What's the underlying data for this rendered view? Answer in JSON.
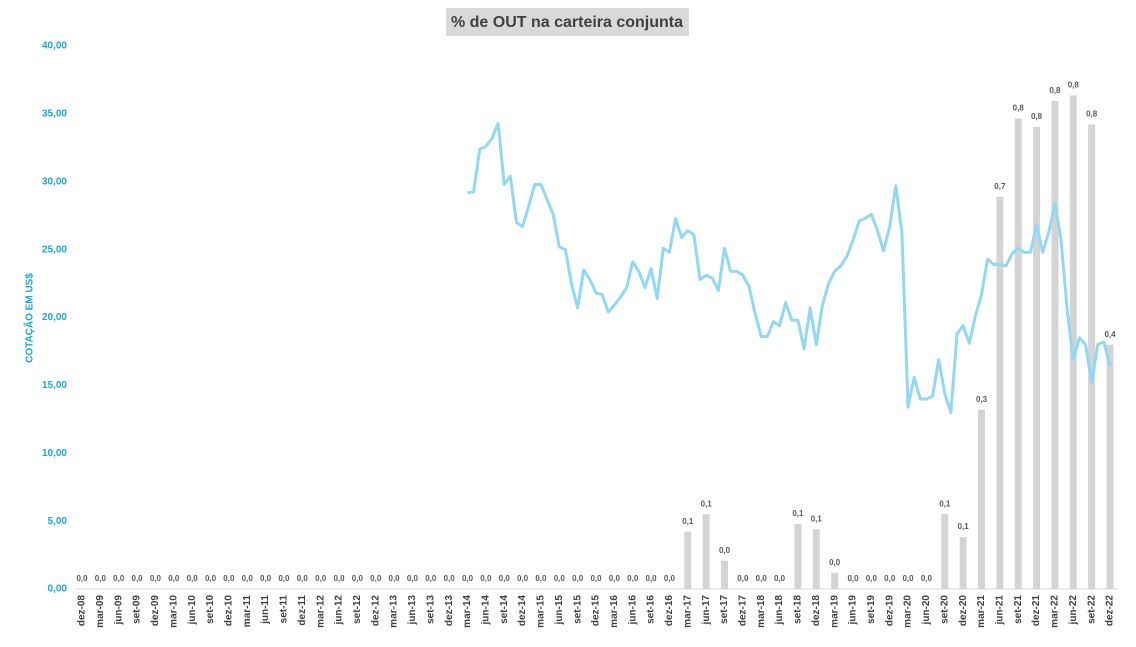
{
  "chart_data": {
    "type": "combo",
    "title": "% de OUT na carteira conjunta",
    "y_label": "COTAÇÃO EM US$",
    "categories": [
      "dez-08",
      null,
      null,
      "mar-09",
      null,
      null,
      "jun-09",
      null,
      null,
      "set-09",
      null,
      null,
      "dez-09",
      null,
      null,
      "mar-10",
      null,
      null,
      "jun-10",
      null,
      null,
      "set-10",
      null,
      null,
      "dez-10",
      null,
      null,
      "mar-11",
      null,
      null,
      "jun-11",
      null,
      null,
      "set-11",
      null,
      null,
      "dez-11",
      null,
      null,
      "mar-12",
      null,
      null,
      "jun-12",
      null,
      null,
      "set-12",
      null,
      null,
      "dez-12",
      null,
      null,
      "mar-13",
      null,
      null,
      "jun-13",
      null,
      null,
      "set-13",
      null,
      null,
      "dez-13",
      null,
      null,
      "mar-14",
      null,
      null,
      "jun-14",
      null,
      null,
      "set-14",
      null,
      null,
      "dez-14",
      null,
      null,
      "mar-15",
      null,
      null,
      "jun-15",
      null,
      null,
      "set-15",
      null,
      null,
      "dez-15",
      null,
      null,
      "mar-16",
      null,
      null,
      "jun-16",
      null,
      null,
      "set-16",
      null,
      null,
      "dez-16",
      null,
      null,
      "mar-17",
      null,
      null,
      "jun-17",
      null,
      null,
      "set-17",
      null,
      null,
      "dez-17",
      null,
      null,
      "mar-18",
      null,
      null,
      "jun-18",
      null,
      null,
      "set-18",
      null,
      null,
      "dez-18",
      null,
      null,
      "mar-19",
      null,
      null,
      "jun-19",
      null,
      null,
      "set-19",
      null,
      null,
      "dez-19",
      null,
      null,
      "mar-20",
      null,
      null,
      "jun-20",
      null,
      null,
      "set-20",
      null,
      null,
      "dez-20",
      null,
      null,
      "mar-21",
      null,
      null,
      "jun-21",
      null,
      null,
      "set-21",
      null,
      null,
      "dez-21",
      null,
      null,
      "mar-22",
      null,
      null,
      "jun-22",
      null,
      null,
      "set-22",
      null,
      null,
      "dez-22"
    ],
    "ylim": [
      0,
      40
    ],
    "yticks": [
      {
        "value": 0,
        "label": "0,00"
      },
      {
        "value": 5,
        "label": "5,00"
      },
      {
        "value": 10,
        "label": "10,00"
      },
      {
        "value": 15,
        "label": "15,00"
      },
      {
        "value": 20,
        "label": "20,00"
      },
      {
        "value": 25,
        "label": "25,00"
      },
      {
        "value": 30,
        "label": "30,00"
      },
      {
        "value": 35,
        "label": "35,00"
      },
      {
        "value": 40,
        "label": "40,00"
      }
    ],
    "y2lim": [
      0,
      0.9
    ],
    "series": [
      {
        "type": "bar",
        "axis": "y2",
        "color": "#d4d4d4",
        "values": [
          0,
          null,
          null,
          0,
          null,
          null,
          0,
          null,
          null,
          0,
          null,
          null,
          0,
          null,
          null,
          0,
          null,
          null,
          0,
          null,
          null,
          0,
          null,
          null,
          0,
          null,
          null,
          0,
          null,
          null,
          0,
          null,
          null,
          0,
          null,
          null,
          0,
          null,
          null,
          0,
          null,
          null,
          0,
          null,
          null,
          0,
          null,
          null,
          0,
          null,
          null,
          0,
          null,
          null,
          0,
          null,
          null,
          0,
          null,
          null,
          0,
          null,
          null,
          0,
          null,
          null,
          0,
          null,
          null,
          0,
          null,
          null,
          0,
          null,
          null,
          0,
          null,
          null,
          0,
          null,
          null,
          0,
          null,
          null,
          0,
          null,
          null,
          0,
          null,
          null,
          0,
          null,
          null,
          0,
          null,
          null,
          0,
          null,
          null,
          0.095,
          null,
          null,
          0.124,
          null,
          null,
          0.047,
          null,
          null,
          0,
          null,
          null,
          0,
          null,
          null,
          0,
          null,
          null,
          0.108,
          null,
          null,
          0.099,
          null,
          null,
          0.027,
          null,
          null,
          0,
          null,
          null,
          0,
          null,
          null,
          0,
          null,
          null,
          0,
          null,
          null,
          0,
          null,
          null,
          0.124,
          null,
          null,
          0.086,
          null,
          null,
          0.297,
          null,
          null,
          0.65,
          null,
          null,
          0.78,
          null,
          null,
          0.766,
          null,
          null,
          0.809,
          null,
          null,
          0.818,
          null,
          null,
          0.77,
          null,
          null,
          0.405
        ],
        "value_labels": [
          "0,0",
          null,
          null,
          "0,0",
          null,
          null,
          "0,0",
          null,
          null,
          "0,0",
          null,
          null,
          "0,0",
          null,
          null,
          "0,0",
          null,
          null,
          "0,0",
          null,
          null,
          "0,0",
          null,
          null,
          "0,0",
          null,
          null,
          "0,0",
          null,
          null,
          "0,0",
          null,
          null,
          "0,0",
          null,
          null,
          "0,0",
          null,
          null,
          "0,0",
          null,
          null,
          "0,0",
          null,
          null,
          "0,0",
          null,
          null,
          "0,0",
          null,
          null,
          "0,0",
          null,
          null,
          "0,0",
          null,
          null,
          "0,0",
          null,
          null,
          "0,0",
          null,
          null,
          "0,0",
          null,
          null,
          "0,0",
          null,
          null,
          "0,0",
          null,
          null,
          "0,0",
          null,
          null,
          "0,0",
          null,
          null,
          "0,0",
          null,
          null,
          "0,0",
          null,
          null,
          "0,0",
          null,
          null,
          "0,0",
          null,
          null,
          "0,0",
          null,
          null,
          "0,0",
          null,
          null,
          "0,0",
          null,
          null,
          "0,1",
          null,
          null,
          "0,1",
          null,
          null,
          "0,0",
          null,
          null,
          "0,0",
          null,
          null,
          "0,0",
          null,
          null,
          "0,0",
          null,
          null,
          "0,1",
          null,
          null,
          "0,1",
          null,
          null,
          "0,0",
          null,
          null,
          "0,0",
          null,
          null,
          "0,0",
          null,
          null,
          "0,0",
          null,
          null,
          "0,0",
          null,
          null,
          "0,0",
          null,
          null,
          "0,1",
          null,
          null,
          "0,1",
          null,
          null,
          "0,3",
          null,
          null,
          "0,7",
          null,
          null,
          "0,8",
          null,
          null,
          "0,8",
          null,
          null,
          "0,8",
          null,
          null,
          "0,8",
          null,
          null,
          "0,8",
          null,
          null,
          "0,4"
        ]
      },
      {
        "type": "line",
        "color": "#93d8f2",
        "values": [
          null,
          null,
          null,
          null,
          null,
          null,
          null,
          null,
          null,
          null,
          null,
          null,
          null,
          null,
          null,
          null,
          null,
          null,
          null,
          null,
          null,
          null,
          null,
          null,
          null,
          null,
          null,
          null,
          null,
          null,
          null,
          null,
          null,
          null,
          null,
          null,
          null,
          null,
          null,
          null,
          null,
          null,
          null,
          null,
          null,
          null,
          null,
          null,
          null,
          null,
          null,
          null,
          null,
          null,
          null,
          null,
          null,
          null,
          null,
          null,
          null,
          null,
          null,
          29.2,
          29.25,
          32.4,
          32.6,
          33.2,
          34.3,
          29.8,
          30.4,
          27.0,
          26.7,
          28.2,
          29.8,
          29.8,
          28.7,
          27.6,
          25.2,
          25.0,
          22.5,
          20.7,
          23.5,
          22.8,
          21.8,
          21.7,
          20.4,
          20.9,
          21.5,
          22.2,
          24.1,
          23.4,
          22.2,
          23.6,
          21.4,
          25.1,
          24.8,
          27.3,
          25.9,
          26.4,
          26.1,
          22.8,
          23.1,
          22.9,
          22.0,
          25.1,
          23.4,
          23.4,
          23.1,
          22.3,
          20.3,
          18.6,
          18.6,
          19.7,
          19.4,
          21.1,
          19.8,
          19.8,
          17.7,
          20.7,
          18.0,
          20.9,
          22.5,
          23.4,
          23.8,
          24.5,
          25.7,
          27.1,
          27.3,
          27.6,
          26.4,
          24.9,
          26.7,
          29.7,
          26.2,
          13.4,
          15.6,
          14.0,
          14.0,
          14.2,
          16.9,
          14.4,
          13.0,
          18.8,
          19.4,
          18.1,
          20.1,
          21.7,
          24.3,
          23.9,
          23.9,
          23.8,
          24.7,
          25.1,
          24.8,
          24.8,
          26.8,
          24.8,
          26.3,
          28.4,
          25.7,
          20.6,
          16.9,
          18.5,
          18.0,
          15.2,
          18.0,
          18.2,
          16.4
        ]
      }
    ]
  }
}
